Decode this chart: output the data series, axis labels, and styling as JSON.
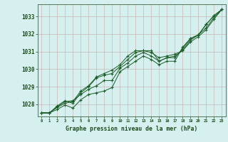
{
  "title": "Graphe pression niveau de la mer (hPa)",
  "xlabel": "Graphe pression niveau de la mer (hPa)",
  "background_color": "#d6efef",
  "grid_color": "#c8b8b8",
  "line_color": "#1a5c28",
  "xlim": [
    -0.5,
    23.5
  ],
  "ylim": [
    1027.3,
    1033.7
  ],
  "yticks": [
    1028,
    1029,
    1030,
    1031,
    1032,
    1033
  ],
  "xticks": [
    0,
    1,
    2,
    3,
    4,
    5,
    6,
    7,
    8,
    9,
    10,
    11,
    12,
    13,
    14,
    15,
    16,
    17,
    18,
    19,
    20,
    21,
    22,
    23
  ],
  "line1": [
    1027.5,
    1027.5,
    1027.7,
    1027.95,
    1027.78,
    1028.25,
    1028.55,
    1028.65,
    1028.75,
    1028.95,
    1029.85,
    1030.15,
    1030.45,
    1030.75,
    1030.55,
    1030.25,
    1030.45,
    1030.45,
    1031.25,
    1031.75,
    1031.95,
    1032.55,
    1033.05,
    1033.4
  ],
  "line2": [
    1027.5,
    1027.5,
    1027.85,
    1028.15,
    1028.2,
    1028.55,
    1028.85,
    1029.05,
    1029.35,
    1029.35,
    1030.05,
    1030.35,
    1030.75,
    1030.95,
    1030.75,
    1030.45,
    1030.65,
    1030.65,
    1031.15,
    1031.75,
    1031.95,
    1032.55,
    1033.05,
    1033.4
  ],
  "line3": [
    1027.5,
    1027.5,
    1027.9,
    1028.2,
    1028.05,
    1028.65,
    1029.0,
    1029.5,
    1029.65,
    1029.75,
    1030.15,
    1030.55,
    1030.95,
    1031.05,
    1031.05,
    1030.45,
    1030.65,
    1030.75,
    1031.05,
    1031.65,
    1031.95,
    1032.35,
    1032.95,
    1033.4
  ],
  "line4": [
    1027.5,
    1027.5,
    1027.82,
    1028.05,
    1028.15,
    1028.75,
    1029.05,
    1029.55,
    1029.75,
    1029.95,
    1030.25,
    1030.75,
    1031.05,
    1031.05,
    1030.95,
    1030.65,
    1030.75,
    1030.85,
    1031.05,
    1031.55,
    1031.85,
    1032.25,
    1032.85,
    1033.4
  ]
}
